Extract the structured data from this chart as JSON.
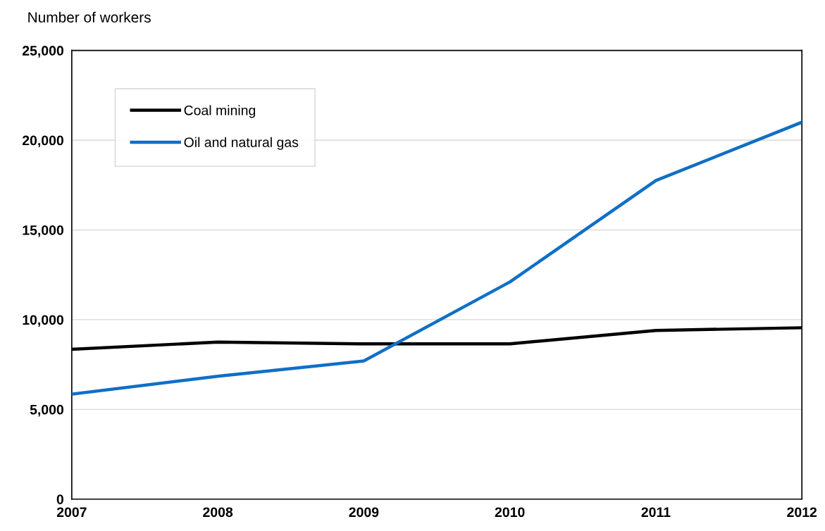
{
  "chart_data": {
    "type": "line",
    "ylabel": "Number of workers",
    "x": [
      2007,
      2008,
      2009,
      2010,
      2011,
      2012
    ],
    "series": [
      {
        "name": "Coal mining",
        "color": "#000000",
        "values": [
          8350,
          8750,
          8650,
          8650,
          9400,
          9550
        ]
      },
      {
        "name": "Oil and natural gas",
        "color": "#0f6fc6",
        "values": [
          5850,
          6850,
          7700,
          12100,
          17750,
          21000
        ]
      }
    ],
    "xlim": [
      2007,
      2012
    ],
    "xticks": [
      2007,
      2008,
      2009,
      2010,
      2011,
      2012
    ],
    "ylim": [
      0,
      25000
    ],
    "yticks": [
      {
        "value": 0,
        "label": "0"
      },
      {
        "value": 5000,
        "label": "5,000"
      },
      {
        "value": 10000,
        "label": "10,000"
      },
      {
        "value": 15000,
        "label": "15,000"
      },
      {
        "value": 20000,
        "label": "20,000"
      },
      {
        "value": 25000,
        "label": "25,000"
      }
    ],
    "grid": "y",
    "legend": "top left",
    "line_style": "solid",
    "marker": "none"
  }
}
